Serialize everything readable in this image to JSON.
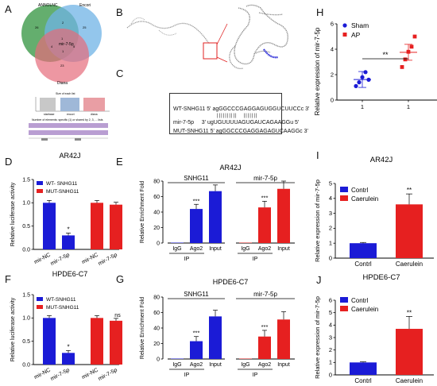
{
  "panels": {
    "A": {
      "label": "A",
      "venn": [
        "ANNOLNC",
        "Encori",
        "Diana"
      ],
      "center": "mir-7-5p",
      "counts": [
        "26",
        "25",
        "23",
        "1",
        "4",
        "5",
        "2",
        "1"
      ],
      "bar_note": "Size of each list",
      "upset_caption": "Number of elements: specific (1) or shared by 2, 3, ... lists",
      "upset_cats": [
        "starbase",
        "encori",
        "diana"
      ]
    },
    "B": {
      "label": "B"
    },
    "C": {
      "label": "C",
      "rows": [
        {
          "name": "WT-SNHG11",
          "seq": "5' agGGCCCGAGGAGUGGUCUUCCc 3'"
        },
        {
          "name": "",
          "seq": "||||||||||   |||||||"
        },
        {
          "name": "mir-7-5p",
          "seq": "3' ugUGUUUUAGUGAUCAGAAGGu 5'"
        },
        {
          "name": "MUT-SNHG11",
          "seq": "5' agGGCCCGAGGAGAGUCAAGGc 3'"
        }
      ]
    },
    "D": {
      "label": "D",
      "title": "AR42J",
      "legend": [
        "WT- SNHG11",
        "MUT-SNHG11"
      ],
      "ylabel": "Relative luciferase activity",
      "sig": "*"
    },
    "E": {
      "label": "E",
      "title": "AR42J",
      "groups": [
        "SNHG11",
        "mir-7-5p"
      ],
      "ylabel": "Relative Enrichment Fold",
      "sig": "***",
      "ip": "IP"
    },
    "F": {
      "label": "F",
      "title": "HPDE6-C7",
      "legend": [
        "WT-SNHG11",
        "MUT-SNHG11"
      ],
      "ylabel": "Relative luciferase activity",
      "sig": "*",
      "ns": "ns"
    },
    "G": {
      "label": "G",
      "title": "HPDE6-C7",
      "groups": [
        "SNHG11",
        "mir-7-5p"
      ],
      "ylabel": "Relative Enrichment Fold",
      "sig": "***",
      "ip": "IP"
    },
    "H": {
      "label": "H",
      "legend": [
        "Sham",
        "AP"
      ],
      "ylabel": "Relative expression of mir-7-5p",
      "sig": "**"
    },
    "I": {
      "label": "I",
      "title": "AR42J",
      "legend": [
        "Contrl",
        "Caerulein"
      ],
      "ylabel": "Relative expression of mir-7-5p",
      "sig": "**"
    },
    "J": {
      "label": "J",
      "title": "HPDE6-C7",
      "legend": [
        "Contrl",
        "Caerulein"
      ],
      "ylabel": "Relative expression of mir-7-5p",
      "sig": "**"
    }
  },
  "colors": {
    "blue": "#1b1bd6",
    "red": "#e62020",
    "green": "#3a9a3a",
    "lightblue": "#4f9ee0",
    "pink": "#e86a7a",
    "purple": "#a98ac6"
  },
  "chart_data": [
    {
      "panel": "D",
      "type": "bar",
      "categories": [
        "mir-NC",
        "mir-7-5p",
        "mir-NC",
        "mir-7-5p"
      ],
      "series": [
        {
          "name": "WT- SNHG11",
          "values": [
            1.0,
            0.3,
            null,
            null
          ]
        },
        {
          "name": "MUT-SNHG11",
          "values": [
            null,
            null,
            1.0,
            0.96
          ]
        }
      ],
      "yticks": [
        "0.0",
        "0.5",
        "1.0",
        "1.5"
      ],
      "ylim": [
        0,
        1.5
      ]
    },
    {
      "panel": "E",
      "type": "bar",
      "categories": [
        "IgG",
        "Ago2",
        "Input",
        "IgG",
        "Ago2",
        "Input"
      ],
      "values": [
        0.5,
        44,
        67,
        0.5,
        46,
        70
      ],
      "yticks": [
        "0",
        "20",
        "40",
        "60",
        "80"
      ],
      "ylim": [
        0,
        80
      ]
    },
    {
      "panel": "F",
      "type": "bar",
      "categories": [
        "mir-NC",
        "mir-7-5p",
        "mir-NC",
        "mir-7-5p"
      ],
      "series": [
        {
          "name": "WT-SNHG11",
          "values": [
            1.0,
            0.25,
            null,
            null
          ]
        },
        {
          "name": "MUT-SNHG11",
          "values": [
            null,
            null,
            1.0,
            0.94
          ]
        }
      ],
      "yticks": [
        "0.0",
        "0.5",
        "1.0",
        "1.5"
      ],
      "ylim": [
        0,
        1.5
      ]
    },
    {
      "panel": "G",
      "type": "bar",
      "categories": [
        "IgG",
        "Ago2",
        "Input",
        "IgG",
        "Ago2",
        "Input"
      ],
      "values": [
        0.5,
        23,
        55,
        0.5,
        29,
        51
      ],
      "yticks": [
        "0",
        "20",
        "40",
        "60",
        "80"
      ],
      "ylim": [
        0,
        80
      ]
    },
    {
      "panel": "H",
      "type": "scatter",
      "xticks": [
        "1",
        "1"
      ],
      "series": [
        {
          "name": "Sham",
          "values": [
            1.1,
            1.4,
            1.8,
            2.2,
            1.6
          ]
        },
        {
          "name": "AP",
          "values": [
            2.6,
            3.2,
            3.8,
            4.2,
            5.0
          ]
        }
      ],
      "yticks": [
        "0",
        "2",
        "4",
        "6"
      ],
      "ylim": [
        0,
        6
      ]
    },
    {
      "panel": "I",
      "type": "bar",
      "categories": [
        "Contrl",
        "Caerulein"
      ],
      "values": [
        1.0,
        3.6
      ],
      "yticks": [
        "0",
        "1",
        "2",
        "3",
        "4",
        "5"
      ],
      "ylim": [
        0,
        5
      ]
    },
    {
      "panel": "J",
      "type": "bar",
      "categories": [
        "Contrl",
        "Caerulein"
      ],
      "values": [
        1.0,
        3.7
      ],
      "yticks": [
        "0",
        "1",
        "2",
        "3",
        "4",
        "5",
        "6"
      ],
      "ylim": [
        0,
        6
      ]
    }
  ]
}
